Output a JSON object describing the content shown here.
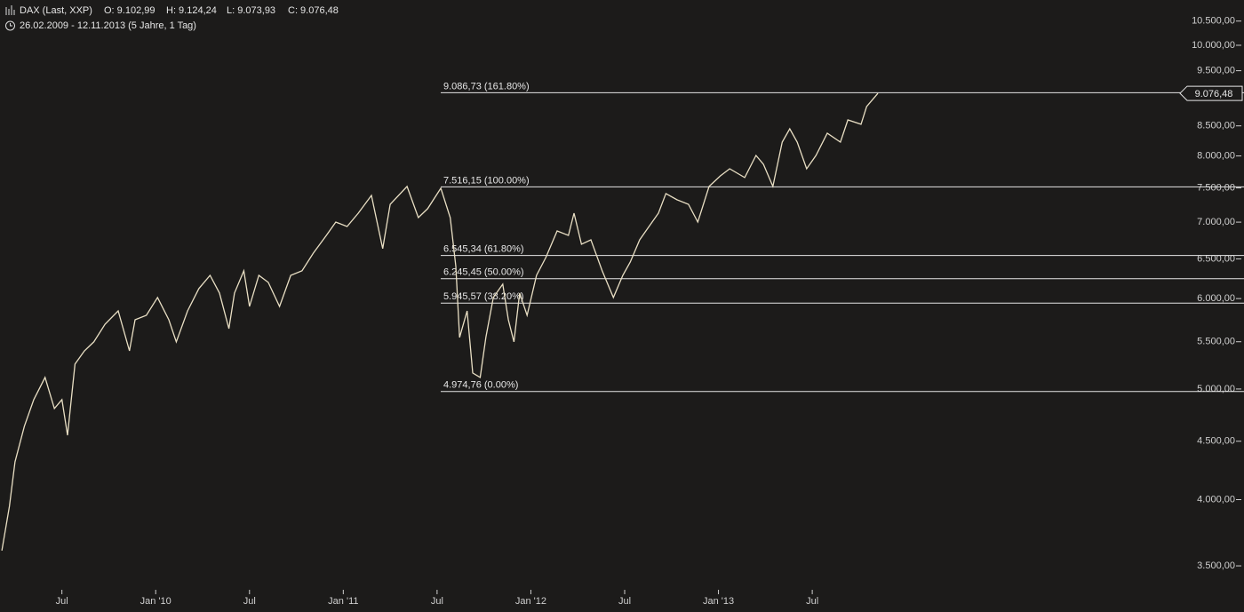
{
  "chart_data": {
    "type": "line",
    "title": "DAX (Last, XXP)",
    "quote": [
      "O: 9.102,99",
      "H: 9.124,24",
      "L: 9.073,93",
      "C: 9.076,48"
    ],
    "subtitle": "26.02.2009 - 12.11.2013 (5 Jahre, 1 Tag)",
    "color": "#e9dfc4",
    "log_scale": true,
    "xlim": [
      2009.17,
      2015.47
    ],
    "ylim": [
      3189,
      10956
    ],
    "xticks": [
      {
        "value": 2009.5,
        "label": "Jul"
      },
      {
        "value": 2010.0,
        "label": "Jan '10"
      },
      {
        "value": 2010.5,
        "label": "Jul"
      },
      {
        "value": 2011.0,
        "label": "Jan '11"
      },
      {
        "value": 2011.5,
        "label": "Jul"
      },
      {
        "value": 2012.0,
        "label": "Jan '12"
      },
      {
        "value": 2012.5,
        "label": "Jul"
      },
      {
        "value": 2013.0,
        "label": "Jan '13"
      },
      {
        "value": 2013.5,
        "label": "Jul"
      }
    ],
    "yticks": [
      {
        "value": 3500,
        "label": "3.500,00"
      },
      {
        "value": 4000,
        "label": "4.000,00"
      },
      {
        "value": 4500,
        "label": "4.500,00"
      },
      {
        "value": 5000,
        "label": "5.000,00"
      },
      {
        "value": 5500,
        "label": "5.500,00"
      },
      {
        "value": 6000,
        "label": "6.000,00"
      },
      {
        "value": 6500,
        "label": "6.500,00"
      },
      {
        "value": 7000,
        "label": "7.000,00"
      },
      {
        "value": 7500,
        "label": "7.500,00"
      },
      {
        "value": 8000,
        "label": "8.000,00"
      },
      {
        "value": 8500,
        "label": "8.500,00"
      },
      {
        "value": 9500,
        "label": "9.500,00"
      },
      {
        "value": 10000,
        "label": "10.000,00"
      },
      {
        "value": 10500,
        "label": "10.500,00"
      }
    ],
    "levels": [
      {
        "value": 9086.73,
        "label": "9.086,73 (161.80%)"
      },
      {
        "value": 7516.15,
        "label": "7.516,15 (100.00%)"
      },
      {
        "value": 6545.34,
        "label": "6.545,34 (61.80%)"
      },
      {
        "value": 6245.45,
        "label": "6.245,45 (50.00%)"
      },
      {
        "value": 5945.57,
        "label": "5.945,57 (38.20%)"
      },
      {
        "value": 4974.76,
        "label": "4.974,76 (0.00%)"
      }
    ],
    "last_price": {
      "value": 9076.48,
      "label": "9.076,48"
    },
    "x": [
      2009.18,
      2009.22,
      2009.25,
      2009.3,
      2009.35,
      2009.41,
      2009.46,
      2009.5,
      2009.53,
      2009.57,
      2009.62,
      2009.67,
      2009.73,
      2009.8,
      2009.86,
      2009.89,
      2009.95,
      2010.01,
      2010.07,
      2010.11,
      2010.17,
      2010.23,
      2010.29,
      2010.34,
      2010.39,
      2010.42,
      2010.47,
      2010.5,
      2010.55,
      2010.6,
      2010.66,
      2010.72,
      2010.78,
      2010.84,
      2010.91,
      2010.96,
      2011.02,
      2011.08,
      2011.15,
      2011.21,
      2011.25,
      2011.34,
      2011.4,
      2011.45,
      2011.52,
      2011.57,
      2011.6,
      2011.62,
      2011.66,
      2011.69,
      2011.73,
      2011.76,
      2011.8,
      2011.85,
      2011.88,
      2011.91,
      2011.94,
      2011.98,
      2012.03,
      2012.08,
      2012.14,
      2012.2,
      2012.23,
      2012.27,
      2012.32,
      2012.38,
      2012.44,
      2012.49,
      2012.53,
      2012.58,
      2012.63,
      2012.68,
      2012.72,
      2012.78,
      2012.84,
      2012.89,
      2012.95,
      2013.01,
      2013.06,
      2013.14,
      2013.2,
      2013.24,
      2013.29,
      2013.34,
      2013.38,
      2013.42,
      2013.47,
      2013.52,
      2013.58,
      2013.65,
      2013.69,
      2013.76,
      2013.79,
      2013.85
    ],
    "values": [
      3609,
      3947,
      4317,
      4638,
      4894,
      5118,
      4807,
      4894,
      4555,
      5257,
      5400,
      5498,
      5698,
      5853,
      5400,
      5749,
      5801,
      6013,
      5749,
      5498,
      5853,
      6122,
      6288,
      6067,
      5647,
      6067,
      6345,
      5906,
      6288,
      6199,
      5906,
      6288,
      6345,
      6576,
      6816,
      7001,
      6939,
      7128,
      7388,
      6636,
      7257,
      7522,
      7064,
      7193,
      7495,
      7064,
      6402,
      5548,
      5853,
      5164,
      5118,
      5548,
      6013,
      6177,
      5749,
      5498,
      6067,
      5801,
      6288,
      6518,
      6877,
      6816,
      7128,
      6695,
      6755,
      6345,
      6013,
      6288,
      6459,
      6755,
      6939,
      7128,
      7415,
      7322,
      7257,
      7001,
      7522,
      7685,
      7796,
      7658,
      8008,
      7866,
      7522,
      8226,
      8450,
      8226,
      7796,
      8008,
      8375,
      8226,
      8603,
      8527,
      8837,
      9076
    ]
  }
}
